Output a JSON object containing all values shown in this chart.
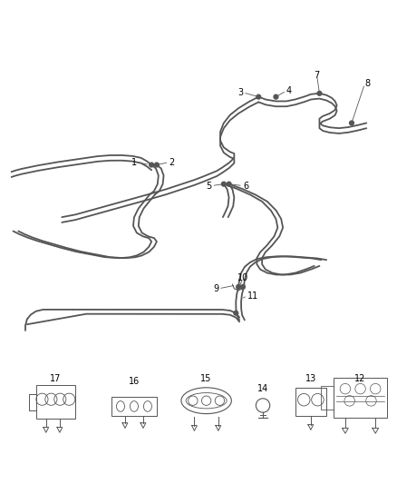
{
  "background_color": "#ffffff",
  "line_color": "#555555",
  "line_width": 1.3,
  "label_fontsize": 7,
  "label_color": "#000000",
  "fig_width": 4.38,
  "fig_height": 5.33,
  "dpi": 100
}
